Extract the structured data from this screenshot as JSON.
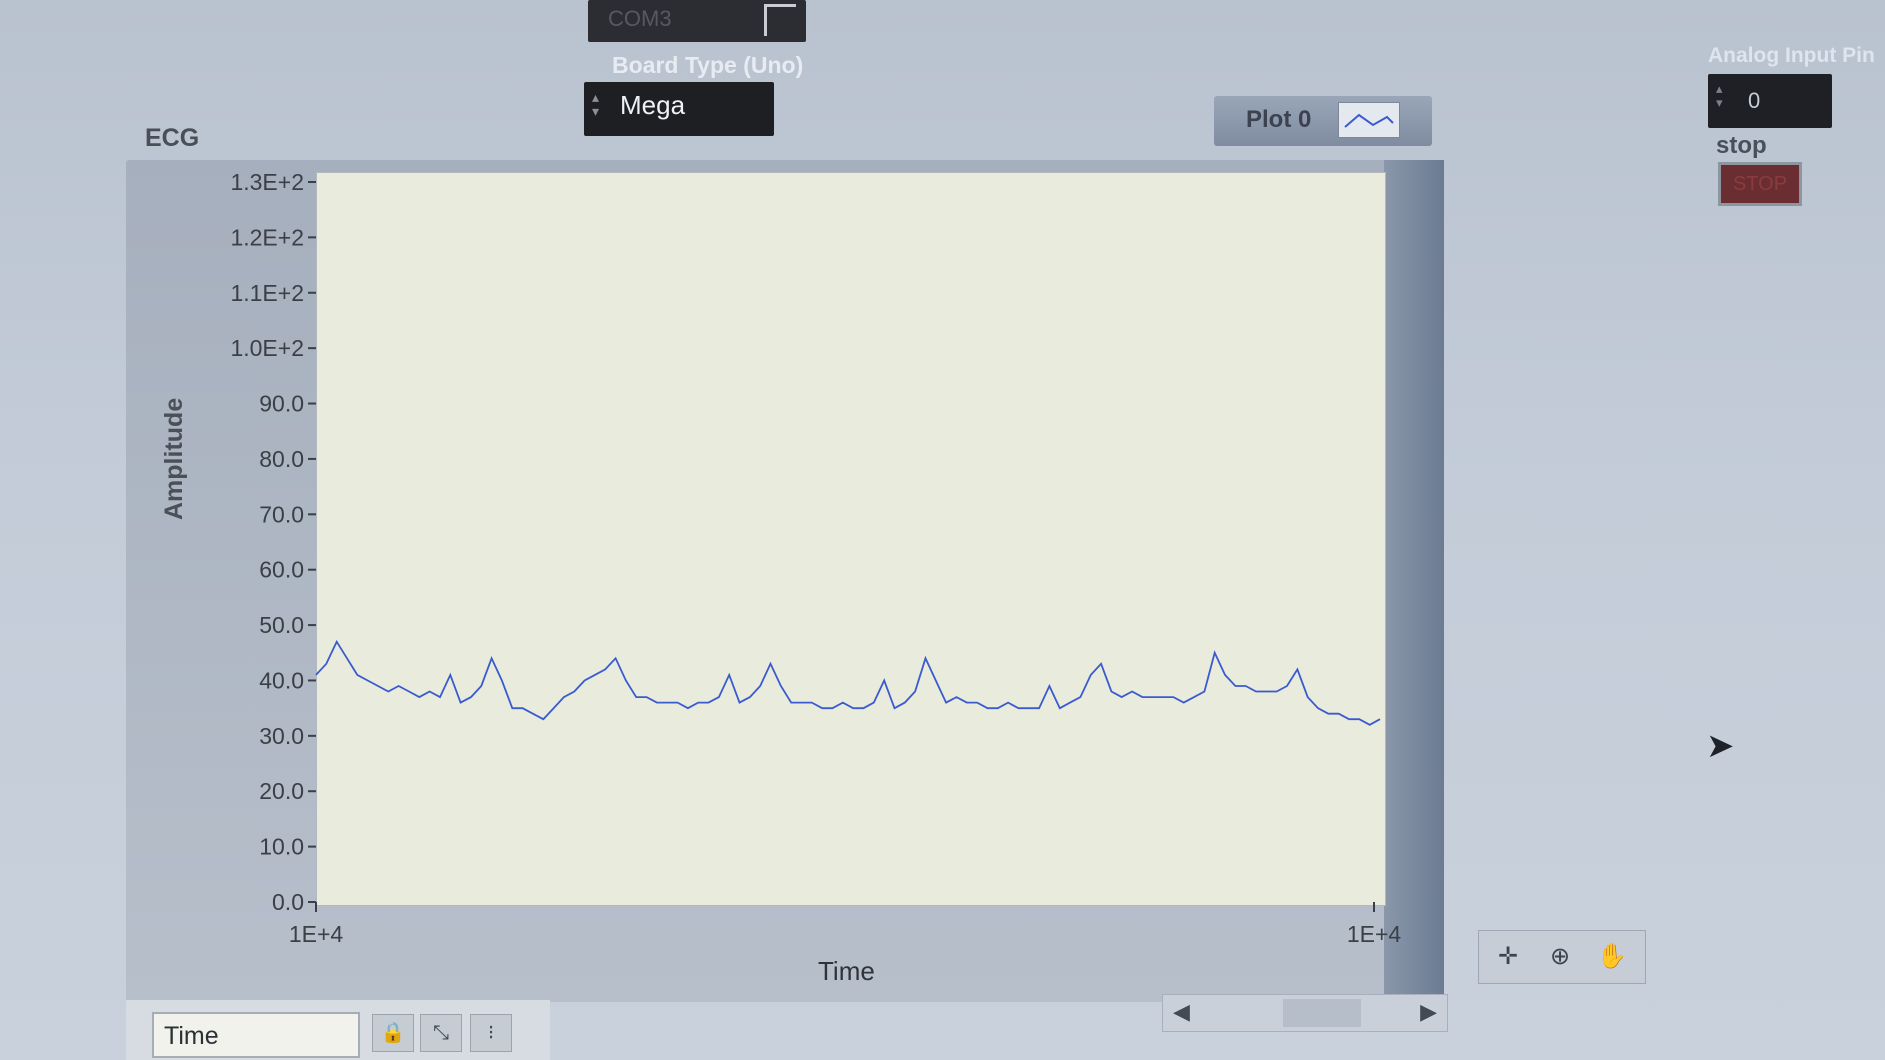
{
  "com_port": {
    "value": "COM3"
  },
  "board_type": {
    "label": "Board Type (Uno)",
    "value": "Mega"
  },
  "graph": {
    "title": "ECG",
    "legend": {
      "plot_name": "Plot 0"
    },
    "y_axis": {
      "label": "Amplitude"
    },
    "x_axis": {
      "label": "Time"
    }
  },
  "analog_input": {
    "label": "Analog Input Pin",
    "value": "0"
  },
  "stop": {
    "label": "stop",
    "button_label": "STOP"
  },
  "cursor_panel": {
    "field_value": "Time"
  },
  "chart_data": {
    "type": "line",
    "xlabel": "Time",
    "ylabel": "Amplitude",
    "ylim": [
      0,
      130
    ],
    "y_ticks": [
      "0.0",
      "10.0",
      "20.0",
      "30.0",
      "40.0",
      "50.0",
      "60.0",
      "70.0",
      "80.0",
      "90.0",
      "1.0E+2",
      "1.1E+2",
      "1.2E+2",
      "1.3E+2"
    ],
    "x_ticks": [
      "1E+4",
      "1E+4"
    ],
    "grid": false,
    "line_color": "#3a5bd0",
    "series": [
      {
        "values": [
          41,
          43,
          47,
          44,
          41,
          40,
          39,
          38,
          39,
          38,
          37,
          38,
          37,
          41,
          36,
          37,
          39,
          44,
          40,
          35,
          35,
          34,
          33,
          35,
          37,
          38,
          40,
          41,
          42,
          44,
          40,
          37,
          37,
          36,
          36,
          36,
          35,
          36,
          36,
          37,
          41,
          36,
          37,
          39,
          43,
          39,
          36,
          36,
          36,
          35,
          35,
          36,
          35,
          35,
          36,
          40,
          35,
          36,
          38,
          44,
          40,
          36,
          37,
          36,
          36,
          35,
          35,
          36,
          35,
          35,
          35,
          39,
          35,
          36,
          37,
          41,
          43,
          38,
          37,
          38,
          37,
          37,
          37,
          37,
          36,
          37,
          38,
          45,
          41,
          39,
          39,
          38,
          38,
          38,
          39,
          42,
          37,
          35,
          34,
          34,
          33,
          33,
          32,
          33
        ]
      }
    ]
  }
}
